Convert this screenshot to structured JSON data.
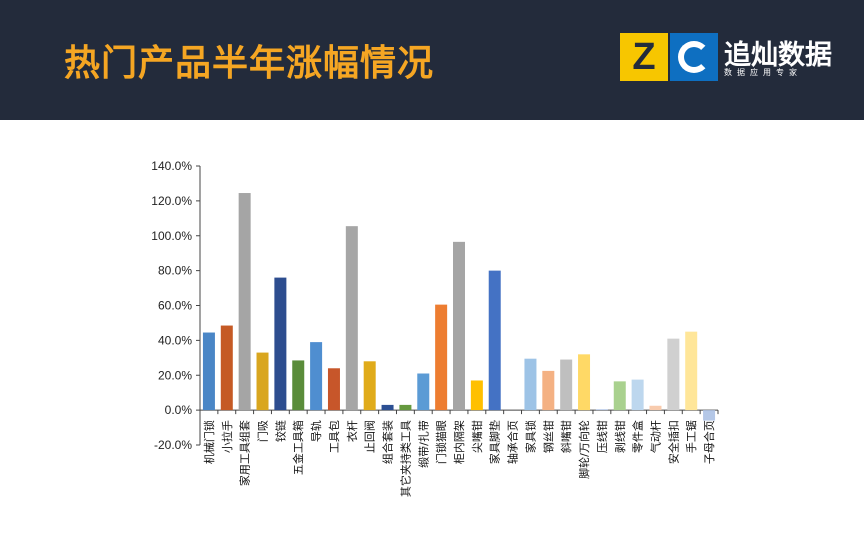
{
  "header": {
    "title": "热门产品半年涨幅情况",
    "logo": {
      "z": "Z",
      "brand": "追灿数据",
      "slogan": "数据应用专家"
    }
  },
  "chart_data": {
    "type": "bar",
    "title": "",
    "xlabel": "",
    "ylabel": "",
    "ylim": [
      -20,
      140
    ],
    "yticks": [
      "-20.0%",
      "0.0%",
      "20.0%",
      "40.0%",
      "60.0%",
      "80.0%",
      "100.0%",
      "120.0%",
      "140.0%"
    ],
    "grid": false,
    "legend": "none",
    "categories": [
      "机械门锁",
      "小拉手",
      "家用工具组套",
      "门吸",
      "铰链",
      "五金工具箱",
      "导轨",
      "工具包",
      "衣杆",
      "止回阀",
      "组合套装",
      "其它夹持类工具",
      "缎带/扎带",
      "门锁猫眼",
      "柜内隔架",
      "尖嘴钳",
      "家具脚垫",
      "轴承合页",
      "家具锁",
      "钢丝钳",
      "斜嘴钳",
      "脚轮/万向轮",
      "压线钳",
      "剥线钳",
      "零件盒",
      "气动杆",
      "安全插扣",
      "手工锯",
      "子母合页"
    ],
    "values": [
      44.5,
      48.5,
      124.5,
      33,
      76,
      28.5,
      39,
      24,
      105.5,
      28,
      3,
      3,
      21,
      60.5,
      96.5,
      17,
      80,
      0,
      29.5,
      22.5,
      29,
      32,
      0.5,
      16.5,
      17.5,
      2.5,
      41,
      45,
      -6
    ],
    "colors": [
      "#4a86c6",
      "#c55a25",
      "#a5a5a5",
      "#d9a61f",
      "#2d4d8f",
      "#5a8c3a",
      "#4f8ed0",
      "#c7562a",
      "#a6a6a6",
      "#e0ab1a",
      "#2c4f93",
      "#65993e",
      "#5b9bd5",
      "#ed7d31",
      "#a5a5a5",
      "#ffc000",
      "#4472c4",
      "#ffffff",
      "#9dc3e6",
      "#f4b183",
      "#bfbfbf",
      "#ffd966",
      "#b4c7e7",
      "#a9d18e",
      "#bdd7ee",
      "#f8cbad",
      "#d0d0d0",
      "#ffe699",
      "#b4c7e7"
    ]
  }
}
